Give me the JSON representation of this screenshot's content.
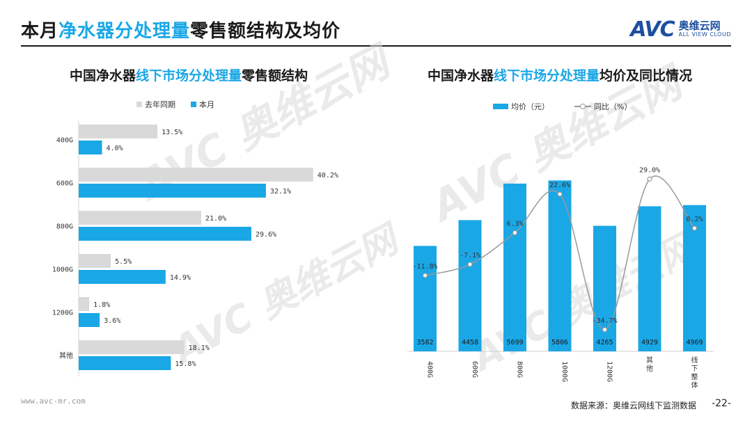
{
  "page": {
    "title_pre": "本月",
    "title_hl": "净水器分处理量",
    "title_post": "零售额结构及均价",
    "logo_mark": "AVC",
    "logo_cn": "奥维云网",
    "logo_en": "ALL VIEW CLOUD",
    "footer_url": "www.avc-mr.com",
    "footer_source": "数据来源：奥维云网线下监测数据",
    "page_number": "-22-",
    "colors": {
      "blue": "#1aa7e6",
      "gray": "#d9d9d9",
      "line": "#999999",
      "title": "#1a1a1a"
    }
  },
  "left": {
    "title_pre": "中国净水器",
    "title_hl": "线下市场分处理量",
    "title_post": "零售额结构",
    "legend_last": "去年同期",
    "legend_curr": "本月"
  },
  "right": {
    "title_pre": "中国净水器",
    "title_hl": "线下市场分处理量",
    "title_post": "均价及同比情况",
    "legend_bar": "均价（元）",
    "legend_line": "同比（%）"
  },
  "chart_data": [
    {
      "type": "bar",
      "orientation": "horizontal",
      "categories": [
        "400G",
        "600G",
        "800G",
        "1000G",
        "1200G",
        "其他"
      ],
      "series": [
        {
          "name": "去年同期",
          "values": [
            13.5,
            40.2,
            21.0,
            5.5,
            1.8,
            18.1
          ],
          "color": "#d9d9d9"
        },
        {
          "name": "本月",
          "values": [
            4.0,
            32.1,
            29.6,
            14.9,
            3.6,
            15.8
          ],
          "color": "#1aa7e6"
        }
      ],
      "value_labels_last": [
        "13.5%",
        "40.2%",
        "21.0%",
        "5.5%",
        "1.8%",
        "18.1%"
      ],
      "value_labels_curr": [
        "4.0%",
        "32.1%",
        "29.6%",
        "14.9%",
        "3.6%",
        "15.8%"
      ],
      "xlim": [
        0,
        45
      ],
      "legend": "top",
      "grid": false
    },
    {
      "type": "bar",
      "combo": "bar+line",
      "categories": [
        "400G",
        "600G",
        "800G",
        "1000G",
        "1200G",
        "其他",
        "线下整体"
      ],
      "series": [
        {
          "name": "均价（元）",
          "values": [
            3582,
            4458,
            5699,
            5806,
            4265,
            4929,
            4969
          ],
          "color": "#1aa7e6"
        },
        {
          "name": "同比（%）",
          "values": [
            -11.8,
            -7.1,
            6.3,
            22.6,
            -34.7,
            29.0,
            8.2
          ],
          "color": "#999999",
          "axis": "secondary",
          "type": "line"
        }
      ],
      "price_labels": [
        "3582",
        "4458",
        "5699",
        "5806",
        "4265",
        "4929",
        "4969"
      ],
      "yoy_labels": [
        "-11.8%",
        "-7.1%",
        "6.3%",
        "22.6%",
        "-34.7%",
        "29.0%",
        "8.2%"
      ],
      "ylim": [
        0,
        6500
      ],
      "y2lim": [
        -38,
        40
      ],
      "legend": "top",
      "grid": false
    }
  ]
}
